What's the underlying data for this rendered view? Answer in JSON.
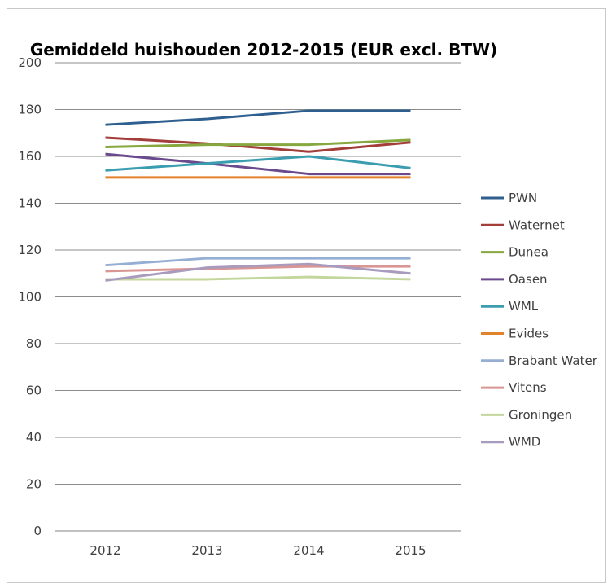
{
  "chart_data": {
    "type": "line",
    "title": "Gemiddeld huishouden 2012-2015 (EUR excl. BTW)",
    "xlabel": "",
    "ylabel": "",
    "categories": [
      "2012",
      "2013",
      "2014",
      "2015"
    ],
    "ylim": [
      0,
      200
    ],
    "yticks": [
      0,
      20,
      40,
      60,
      80,
      100,
      120,
      140,
      160,
      180,
      200
    ],
    "grid": "horizontal",
    "legend": "right",
    "series": [
      {
        "name": "PWN",
        "color": "#2e5f8f",
        "values": [
          173.5,
          176,
          179.5,
          179.5
        ]
      },
      {
        "name": "Waternet",
        "color": "#a33d3a",
        "values": [
          168,
          165.5,
          162,
          166
        ]
      },
      {
        "name": "Dunea",
        "color": "#86a83e",
        "values": [
          164,
          165,
          165,
          167
        ]
      },
      {
        "name": "Oasen",
        "color": "#6a4a8c",
        "values": [
          161,
          157,
          152.5,
          152.5
        ]
      },
      {
        "name": "WML",
        "color": "#3a9db0",
        "values": [
          154,
          157,
          160,
          155
        ]
      },
      {
        "name": "Evides",
        "color": "#e3822c",
        "values": [
          151,
          151,
          151,
          151
        ]
      },
      {
        "name": "Brabant Water",
        "color": "#95aed3",
        "values": [
          113.5,
          116.5,
          116.5,
          116.5
        ]
      },
      {
        "name": "Vitens",
        "color": "#d99694",
        "values": [
          111,
          112,
          113,
          113
        ]
      },
      {
        "name": "Groningen",
        "color": "#c3d69b",
        "values": [
          107.5,
          107.5,
          108.5,
          107.5
        ]
      },
      {
        "name": "WMD",
        "color": "#a99bbd",
        "values": [
          107,
          112.5,
          114,
          110
        ]
      }
    ]
  }
}
